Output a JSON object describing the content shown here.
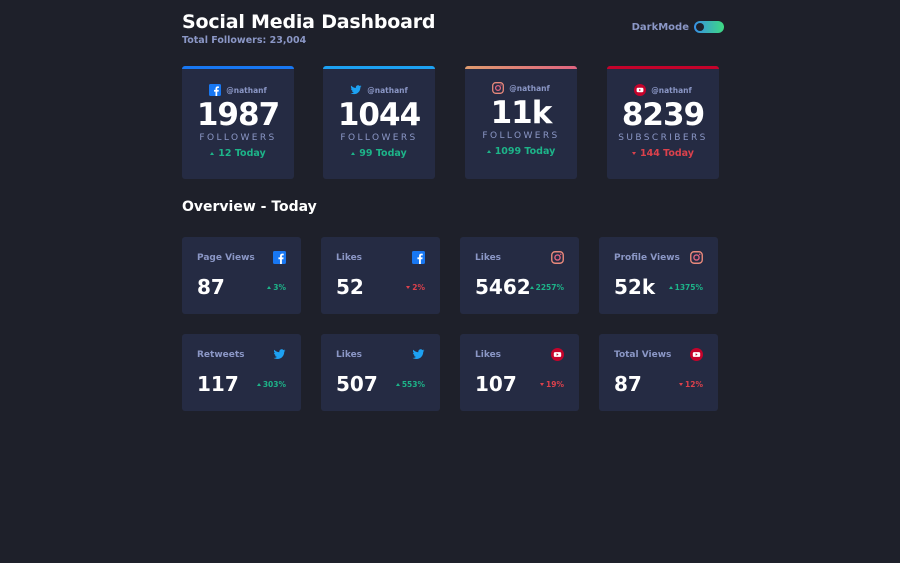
{
  "header": {
    "title": "Social Media Dashboard",
    "subtitle": "Total Followers: 23,004",
    "toggle_label": "DarkMode"
  },
  "colors": {
    "facebook": "#1877f2",
    "twitter": "#1da1f2",
    "instagram": "#e8887b",
    "youtube": "#c4032b",
    "up": "#1db489",
    "down": "#dc414c"
  },
  "cards": [
    {
      "network": "facebook",
      "icon": "facebook-icon",
      "handle": "@nathanf",
      "count": "1987",
      "metric": "FOLLOWERS",
      "today": "12 Today",
      "trend": "up"
    },
    {
      "network": "twitter",
      "icon": "twitter-icon",
      "handle": "@nathanf",
      "count": "1044",
      "metric": "FOLLOWERS",
      "today": "99 Today",
      "trend": "up"
    },
    {
      "network": "instagram",
      "icon": "instagram-icon",
      "handle": "@nathanf",
      "count": "11k",
      "metric": "FOLLOWERS",
      "today": "1099 Today",
      "trend": "up"
    },
    {
      "network": "youtube",
      "icon": "youtube-icon",
      "handle": "@nathanf",
      "count": "8239",
      "metric": "SUBSCRIBERS",
      "today": "144 Today",
      "trend": "down"
    }
  ],
  "overview": {
    "title": "Overview - Today",
    "items": [
      {
        "label": "Page Views",
        "icon": "facebook-icon",
        "value": "87",
        "change": "3%",
        "trend": "up"
      },
      {
        "label": "Likes",
        "icon": "facebook-icon",
        "value": "52",
        "change": "2%",
        "trend": "down"
      },
      {
        "label": "Likes",
        "icon": "instagram-icon",
        "value": "5462",
        "change": "2257%",
        "trend": "up"
      },
      {
        "label": "Profile Views",
        "icon": "instagram-icon",
        "value": "52k",
        "change": "1375%",
        "trend": "up"
      },
      {
        "label": "Retweets",
        "icon": "twitter-icon",
        "value": "117",
        "change": "303%",
        "trend": "up"
      },
      {
        "label": "Likes",
        "icon": "twitter-icon",
        "value": "507",
        "change": "553%",
        "trend": "up"
      },
      {
        "label": "Likes",
        "icon": "youtube-icon",
        "value": "107",
        "change": "19%",
        "trend": "down"
      },
      {
        "label": "Total Views",
        "icon": "youtube-icon",
        "value": "87",
        "change": "12%",
        "trend": "down"
      }
    ]
  }
}
